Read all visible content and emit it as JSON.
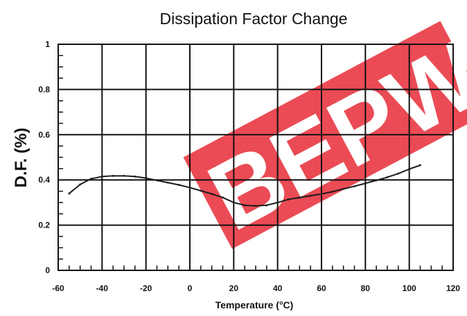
{
  "chart_data": {
    "type": "line",
    "title": "Dissipation Factor Change",
    "xlabel": "Temperature (°C)",
    "ylabel": "D.F. (%)",
    "xlim": [
      -60,
      120
    ],
    "ylim": [
      0,
      1
    ],
    "xticks": [
      -60,
      -40,
      -20,
      0,
      20,
      40,
      60,
      80,
      100,
      120
    ],
    "yticks": [
      0,
      0.2,
      0.4,
      0.6,
      0.8,
      1
    ],
    "xtick_labels": [
      "-60",
      "-40",
      "-20",
      "0",
      "20",
      "40",
      "60",
      "80",
      "100",
      "120"
    ],
    "ytick_labels": [
      "0",
      "0.2",
      "0.4",
      "0.6",
      "0.8",
      "1"
    ],
    "grid": true,
    "series": [
      {
        "x": [
          -55,
          -50,
          -45,
          -40,
          -35,
          -30,
          -25,
          -20,
          -15,
          -10,
          -5,
          0,
          5,
          10,
          15,
          20,
          25,
          30,
          35,
          40,
          45,
          50,
          55,
          60,
          65,
          70,
          75,
          80,
          85,
          90,
          95,
          100,
          105
        ],
        "y": [
          0.34,
          0.38,
          0.405,
          0.415,
          0.418,
          0.418,
          0.415,
          0.408,
          0.398,
          0.388,
          0.378,
          0.366,
          0.352,
          0.338,
          0.322,
          0.3,
          0.288,
          0.285,
          0.288,
          0.3,
          0.314,
          0.322,
          0.33,
          0.338,
          0.348,
          0.36,
          0.372,
          0.385,
          0.398,
          0.412,
          0.428,
          0.448,
          0.465
        ]
      }
    ],
    "colors": {
      "line": "#1a1a1a",
      "grid": "#111111",
      "watermark": "#e30613"
    }
  },
  "watermark": {
    "text": "BEPW"
  }
}
